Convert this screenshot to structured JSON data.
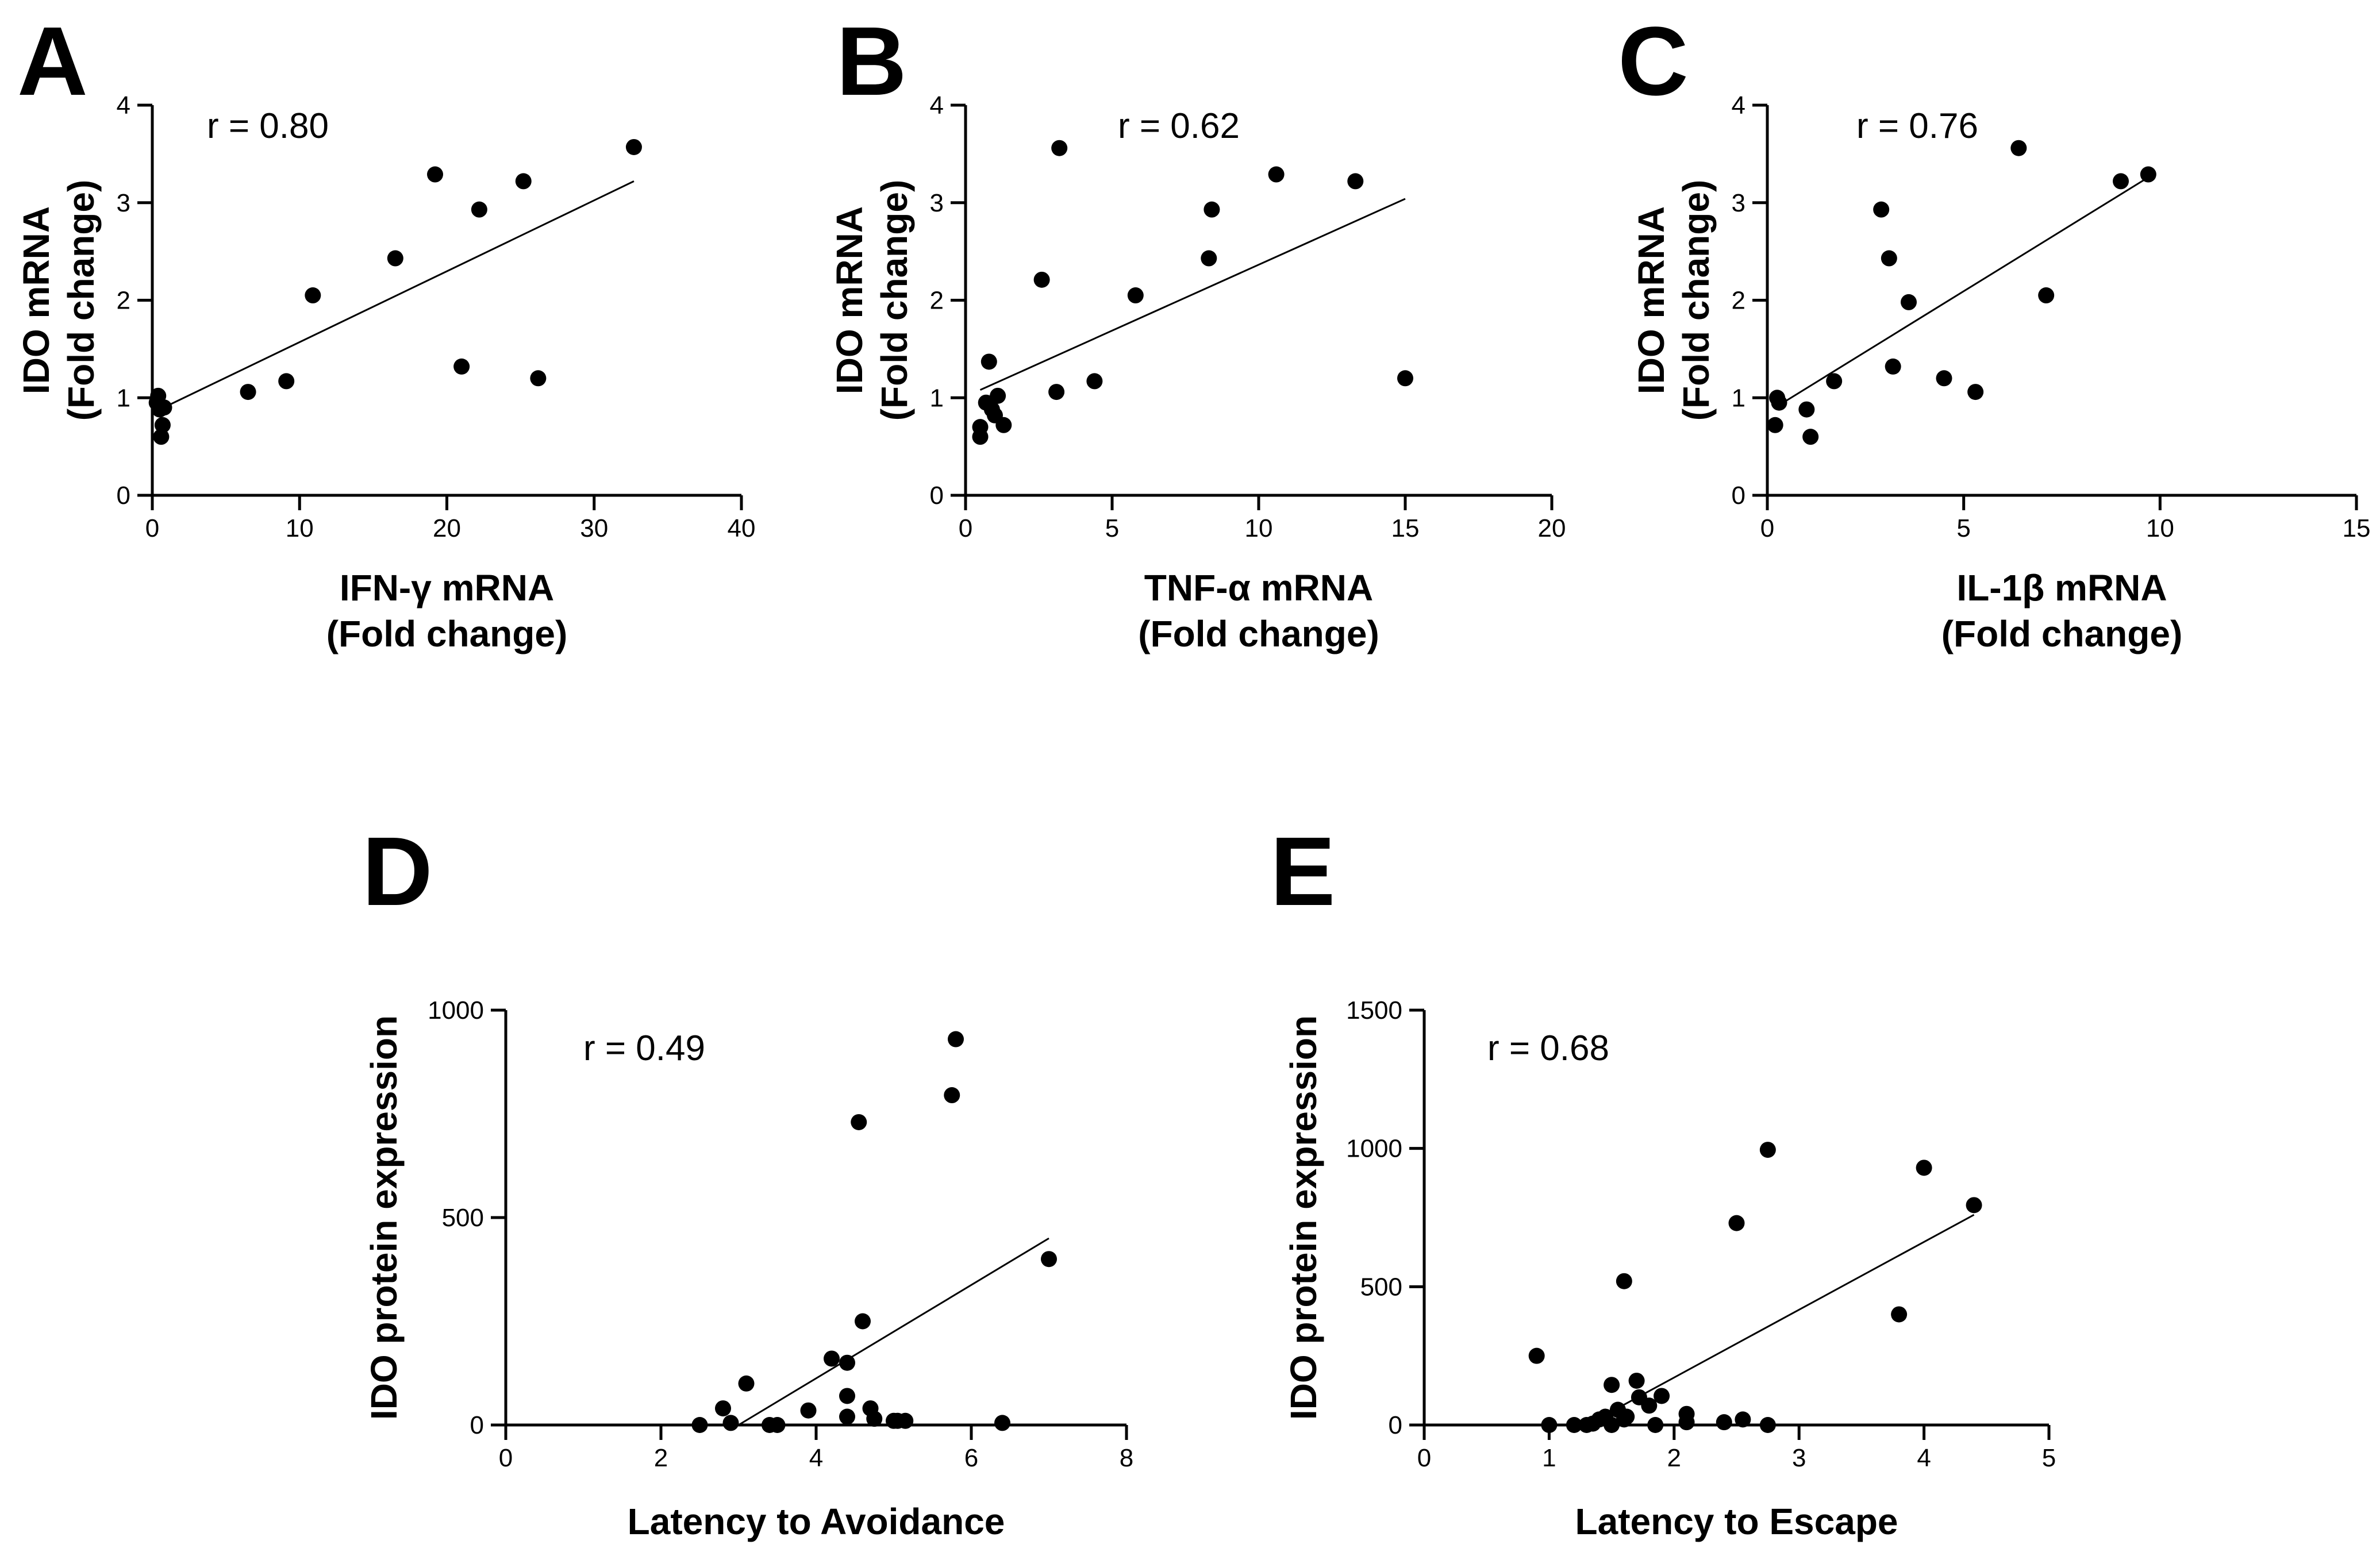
{
  "chart_data": [
    {
      "type": "scatter",
      "panel": "A",
      "xlabel": [
        "IFN-γ mRNA",
        "(Fold change)"
      ],
      "ylabel": [
        "IDO mRNA",
        "(Fold change)"
      ],
      "annotation": "r = 0.80",
      "xlim": [
        0,
        40
      ],
      "ylim": [
        0,
        4
      ],
      "xticks": [
        0,
        10,
        20,
        30,
        40
      ],
      "yticks": [
        0,
        1,
        2,
        3,
        4
      ],
      "points": [
        [
          0.3,
          0.95
        ],
        [
          0.4,
          1.02
        ],
        [
          0.5,
          0.88
        ],
        [
          0.6,
          0.6
        ],
        [
          0.7,
          0.72
        ],
        [
          0.8,
          0.9
        ],
        [
          6.5,
          1.06
        ],
        [
          9.1,
          1.17
        ],
        [
          10.9,
          2.05
        ],
        [
          16.5,
          2.43
        ],
        [
          19.2,
          3.29
        ],
        [
          21.0,
          1.32
        ],
        [
          22.2,
          2.93
        ],
        [
          25.2,
          3.22
        ],
        [
          26.2,
          1.2
        ],
        [
          32.7,
          3.57
        ]
      ],
      "fit": [
        [
          0.5,
          0.88
        ],
        [
          32.7,
          3.22
        ]
      ]
    },
    {
      "type": "scatter",
      "panel": "B",
      "xlabel": [
        "TNF-α mRNA",
        "(Fold change)"
      ],
      "ylabel": [
        "IDO mRNA",
        "(Fold change)"
      ],
      "annotation": "r = 0.62",
      "xlim": [
        0,
        20
      ],
      "ylim": [
        0,
        4
      ],
      "xticks": [
        0,
        5,
        10,
        15,
        20
      ],
      "yticks": [
        0,
        1,
        2,
        3,
        4
      ],
      "points": [
        [
          0.5,
          0.7
        ],
        [
          0.5,
          0.6
        ],
        [
          0.7,
          0.95
        ],
        [
          0.8,
          1.37
        ],
        [
          0.9,
          0.88
        ],
        [
          1.0,
          0.82
        ],
        [
          1.1,
          1.02
        ],
        [
          1.3,
          0.72
        ],
        [
          2.6,
          2.21
        ],
        [
          3.1,
          1.06
        ],
        [
          3.2,
          3.56
        ],
        [
          4.4,
          1.17
        ],
        [
          5.8,
          2.05
        ],
        [
          8.3,
          2.43
        ],
        [
          8.4,
          2.93
        ],
        [
          10.6,
          3.29
        ],
        [
          13.3,
          3.22
        ],
        [
          15.0,
          1.2
        ]
      ],
      "fit": [
        [
          0.5,
          1.08
        ],
        [
          15.0,
          3.04
        ]
      ]
    },
    {
      "type": "scatter",
      "panel": "C",
      "xlabel": [
        "IL-1β mRNA",
        "(Fold change)"
      ],
      "ylabel": [
        "IDO mRNA",
        "(Fold change)"
      ],
      "annotation": "r = 0.76",
      "xlim": [
        0,
        15
      ],
      "ylim": [
        0,
        4
      ],
      "xticks": [
        0,
        5,
        10,
        15
      ],
      "yticks": [
        0,
        1,
        2,
        3,
        4
      ],
      "points": [
        [
          0.2,
          0.72
        ],
        [
          0.25,
          1.0
        ],
        [
          0.3,
          0.95
        ],
        [
          1.0,
          0.88
        ],
        [
          1.1,
          0.6
        ],
        [
          1.7,
          1.17
        ],
        [
          2.9,
          2.93
        ],
        [
          3.1,
          2.43
        ],
        [
          3.2,
          1.32
        ],
        [
          3.6,
          1.98
        ],
        [
          4.5,
          1.2
        ],
        [
          5.3,
          1.06
        ],
        [
          6.4,
          3.56
        ],
        [
          7.1,
          2.05
        ],
        [
          9.0,
          3.22
        ],
        [
          9.7,
          3.29
        ]
      ],
      "fit": [
        [
          0.2,
          0.9
        ],
        [
          9.7,
          3.26
        ]
      ]
    },
    {
      "type": "scatter",
      "panel": "D",
      "xlabel": [
        "Latency to Avoidance"
      ],
      "ylabel": [
        "IDO protein expression"
      ],
      "annotation": "r = 0.49",
      "xlim": [
        0,
        8
      ],
      "ylim": [
        0,
        1000
      ],
      "xticks": [
        0,
        2,
        4,
        6,
        8
      ],
      "yticks": [
        0,
        500,
        1000
      ],
      "points": [
        [
          2.5,
          0
        ],
        [
          2.8,
          40
        ],
        [
          2.9,
          5
        ],
        [
          3.1,
          100
        ],
        [
          3.4,
          0
        ],
        [
          3.5,
          0
        ],
        [
          3.9,
          35
        ],
        [
          4.2,
          160
        ],
        [
          4.4,
          150
        ],
        [
          4.4,
          70
        ],
        [
          4.4,
          20
        ],
        [
          4.55,
          730
        ],
        [
          4.6,
          250
        ],
        [
          4.7,
          40
        ],
        [
          4.75,
          15
        ],
        [
          5.0,
          10
        ],
        [
          5.05,
          10
        ],
        [
          5.15,
          10
        ],
        [
          5.75,
          795
        ],
        [
          5.8,
          930
        ],
        [
          6.4,
          5
        ],
        [
          7.0,
          400
        ]
      ],
      "fit": [
        [
          3.0,
          0
        ],
        [
          7.0,
          450
        ]
      ]
    },
    {
      "type": "scatter",
      "panel": "E",
      "xlabel": [
        "Latency to Escape"
      ],
      "ylabel": [
        "IDO protein expression"
      ],
      "annotation": "r = 0.68",
      "xlim": [
        0,
        5
      ],
      "ylim": [
        0,
        1500
      ],
      "xticks": [
        0,
        1,
        2,
        3,
        4,
        5
      ],
      "yticks": [
        0,
        500,
        1000,
        1500
      ],
      "points": [
        [
          0.9,
          250
        ],
        [
          1.0,
          0
        ],
        [
          1.2,
          0
        ],
        [
          1.3,
          0
        ],
        [
          1.35,
          5
        ],
        [
          1.4,
          20
        ],
        [
          1.45,
          30
        ],
        [
          1.5,
          145
        ],
        [
          1.5,
          0
        ],
        [
          1.55,
          55
        ],
        [
          1.6,
          20
        ],
        [
          1.6,
          520
        ],
        [
          1.62,
          30
        ],
        [
          1.7,
          160
        ],
        [
          1.72,
          100
        ],
        [
          1.8,
          70
        ],
        [
          1.85,
          0
        ],
        [
          1.9,
          105
        ],
        [
          2.1,
          10
        ],
        [
          2.1,
          40
        ],
        [
          2.4,
          10
        ],
        [
          2.5,
          730
        ],
        [
          2.55,
          20
        ],
        [
          2.75,
          995
        ],
        [
          2.75,
          0
        ],
        [
          3.8,
          400
        ],
        [
          4.0,
          930
        ],
        [
          4.4,
          795
        ]
      ],
      "fit": [
        [
          1.3,
          0
        ],
        [
          4.4,
          760
        ]
      ]
    }
  ]
}
